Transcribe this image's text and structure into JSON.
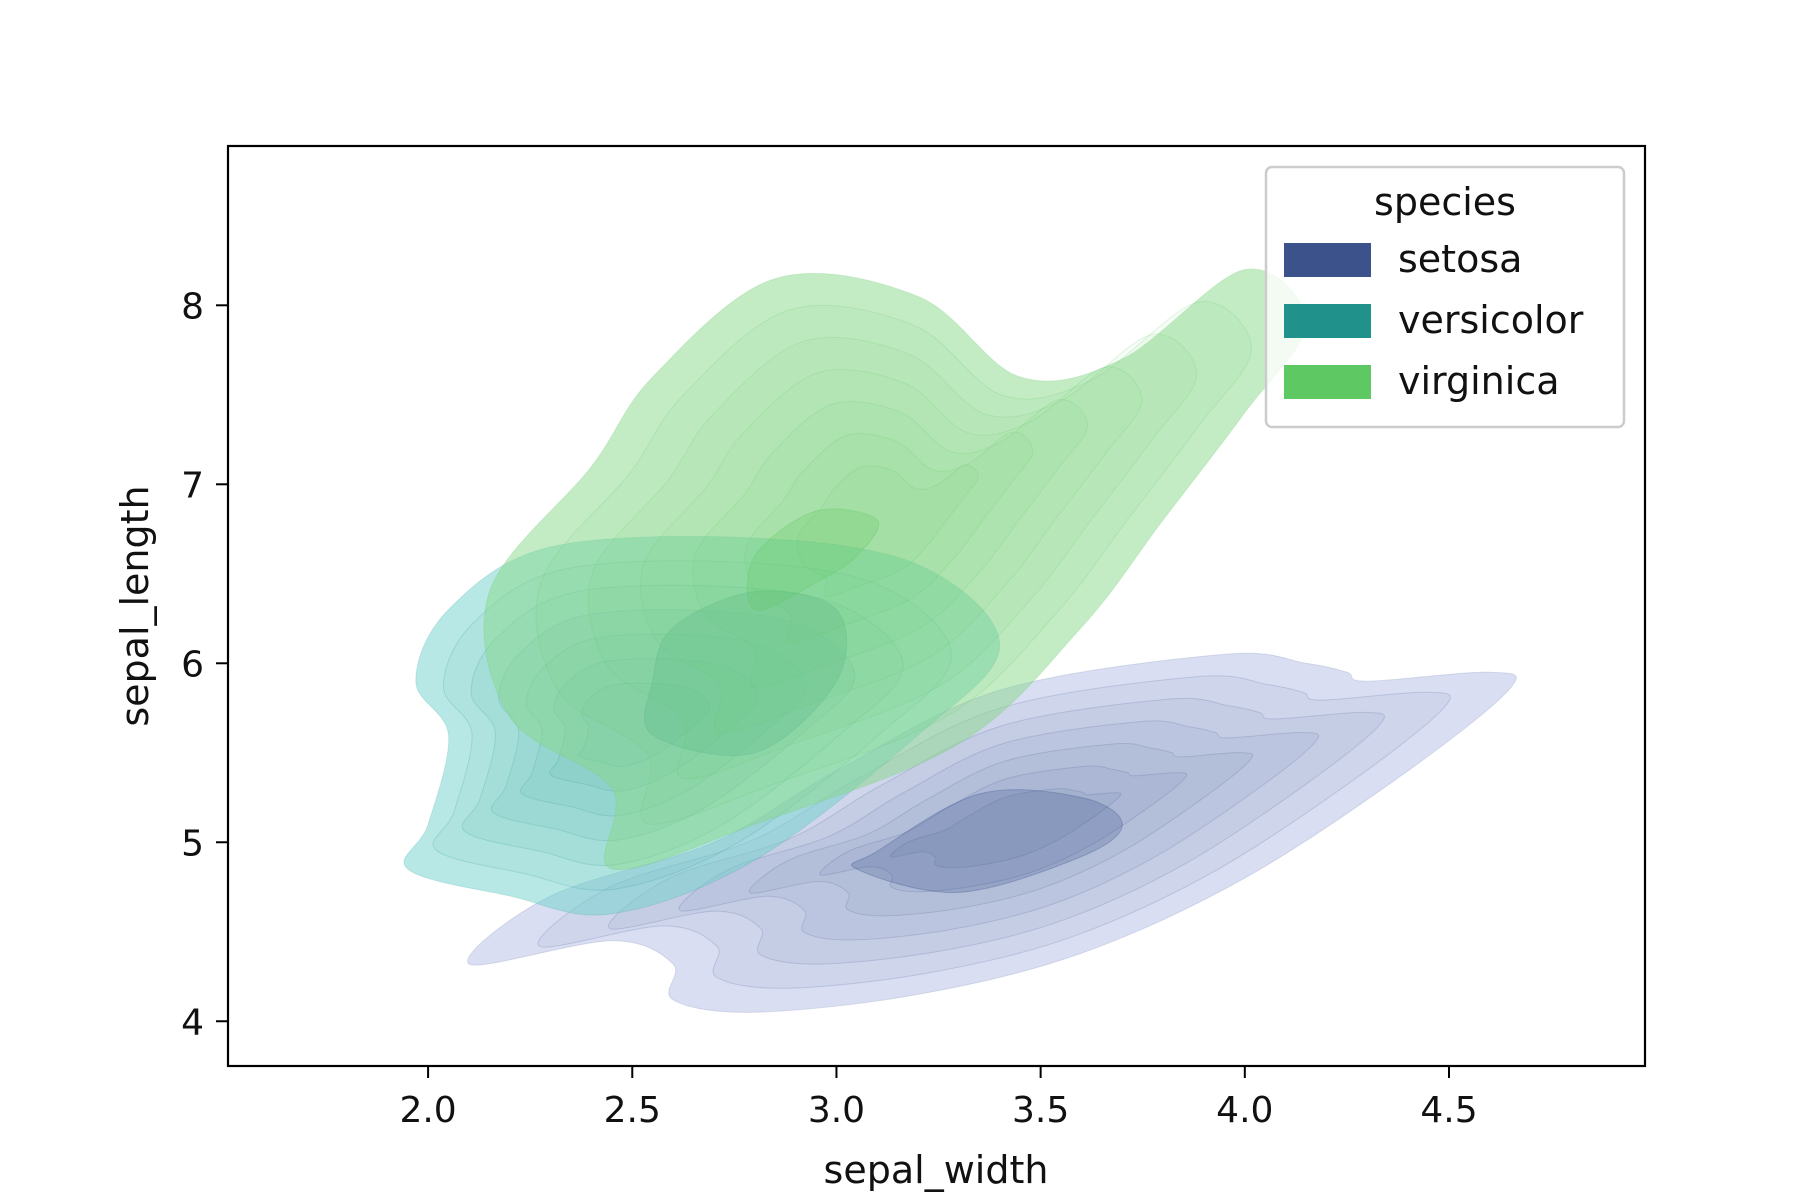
{
  "chart_data": {
    "type": "kde",
    "title": "",
    "xlabel": "sepal_width",
    "ylabel": "sepal_length",
    "xlim": [
      1.51,
      4.98
    ],
    "ylim": [
      3.75,
      8.89
    ],
    "xticks": [
      2.0,
      2.5,
      3.0,
      3.5,
      4.0,
      4.5
    ],
    "xtick_labels": [
      "2.0",
      "2.5",
      "3.0",
      "3.5",
      "4.0",
      "4.5"
    ],
    "yticks": [
      4,
      5,
      6,
      7,
      8
    ],
    "ytick_labels": [
      "4",
      "5",
      "6",
      "7",
      "8"
    ],
    "grid": false,
    "fill": true,
    "legend": {
      "title": "species",
      "placement": "top-right",
      "entries": [
        "setosa",
        "versicolor",
        "virginica"
      ]
    },
    "series": [
      {
        "name": "setosa",
        "color": "#3b528b",
        "fill_color": "#b4bde6",
        "outer_contour": [
          [
            2.1,
            4.32
          ],
          [
            2.45,
            4.45
          ],
          [
            2.6,
            4.32
          ],
          [
            2.6,
            4.12
          ],
          [
            2.8,
            4.05
          ],
          [
            3.2,
            4.15
          ],
          [
            3.6,
            4.38
          ],
          [
            4.0,
            4.8
          ],
          [
            4.4,
            5.4
          ],
          [
            4.65,
            5.86
          ],
          [
            4.6,
            5.95
          ],
          [
            4.3,
            5.9
          ],
          [
            4.25,
            5.95
          ],
          [
            4.15,
            6.0
          ],
          [
            3.95,
            6.05
          ],
          [
            3.4,
            5.85
          ],
          [
            3.0,
            5.4
          ],
          [
            2.7,
            5.0
          ],
          [
            2.3,
            4.7
          ]
        ],
        "peak_contour": [
          [
            3.05,
            4.85
          ],
          [
            3.3,
            4.72
          ],
          [
            3.6,
            4.92
          ],
          [
            3.7,
            5.1
          ],
          [
            3.6,
            5.25
          ],
          [
            3.35,
            5.27
          ],
          [
            3.1,
            4.95
          ]
        ]
      },
      {
        "name": "versicolor",
        "color": "#21918c",
        "fill_color": "#6fd2cb",
        "outer_contour": [
          [
            1.95,
            4.85
          ],
          [
            2.2,
            4.7
          ],
          [
            2.45,
            4.6
          ],
          [
            2.8,
            4.9
          ],
          [
            3.2,
            5.6
          ],
          [
            3.4,
            6.1
          ],
          [
            3.2,
            6.55
          ],
          [
            2.8,
            6.7
          ],
          [
            2.3,
            6.65
          ],
          [
            2.05,
            6.3
          ],
          [
            1.97,
            5.9
          ],
          [
            2.05,
            5.6
          ],
          [
            2.0,
            5.1
          ]
        ],
        "peak_contour": [
          [
            2.55,
            5.6
          ],
          [
            2.8,
            5.5
          ],
          [
            3.0,
            5.9
          ],
          [
            3.0,
            6.3
          ],
          [
            2.8,
            6.4
          ],
          [
            2.6,
            6.2
          ],
          [
            2.55,
            5.9
          ]
        ]
      },
      {
        "name": "virginica",
        "color": "#5ec962",
        "fill_color": "#88d88a",
        "outer_contour": [
          [
            2.45,
            4.85
          ],
          [
            2.8,
            5.1
          ],
          [
            3.3,
            5.55
          ],
          [
            3.6,
            6.2
          ],
          [
            3.8,
            6.8
          ],
          [
            4.0,
            7.4
          ],
          [
            4.15,
            7.9
          ],
          [
            4.0,
            8.2
          ],
          [
            3.7,
            7.7
          ],
          [
            3.45,
            7.6
          ],
          [
            3.2,
            8.05
          ],
          [
            2.85,
            8.15
          ],
          [
            2.55,
            7.6
          ],
          [
            2.4,
            7.1
          ],
          [
            2.15,
            6.4
          ],
          [
            2.2,
            5.7
          ],
          [
            2.45,
            5.3
          ]
        ],
        "peak_contour": [
          [
            2.8,
            6.3
          ],
          [
            2.95,
            6.45
          ],
          [
            3.05,
            6.6
          ],
          [
            3.1,
            6.8
          ],
          [
            2.95,
            6.85
          ],
          [
            2.8,
            6.6
          ]
        ]
      }
    ]
  }
}
